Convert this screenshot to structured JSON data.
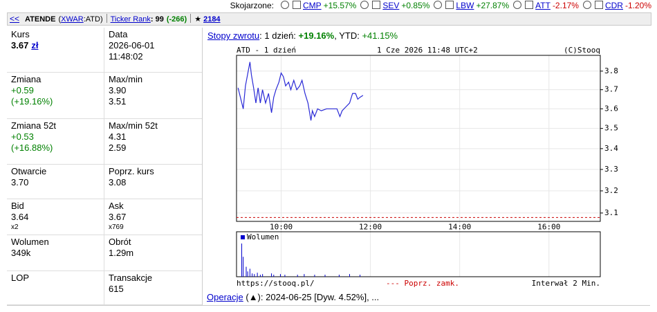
{
  "compare_bar": {
    "label": "Skojarzone:",
    "items": [
      {
        "ticker": "CMP",
        "change": "+15.57%",
        "color": "#008000"
      },
      {
        "ticker": "SEV",
        "change": "+0.85%",
        "color": "#008000"
      },
      {
        "ticker": "LBW",
        "change": "+27.87%",
        "color": "#008000"
      },
      {
        "ticker": "ATT",
        "change": "-2.17%",
        "color": "#cc0000"
      },
      {
        "ticker": "CDR",
        "change": "-1.20%",
        "color": "#cc0000"
      }
    ]
  },
  "header": {
    "back": "<<",
    "name": "ATENDE",
    "market_open": "(",
    "market": "XWAR",
    "market_close": ":ATD)",
    "rank_link": "Ticker Rank",
    "rank": ": 99",
    "rank_change": "(-266)",
    "star": "★",
    "star_count": "2184"
  },
  "quote_table": {
    "rows": [
      [
        {
          "label": "Kurs",
          "lines": [
            "3.67"
          ],
          "unit": "zł",
          "bold": true
        },
        {
          "label": "Data",
          "lines": [
            "2026-06-01",
            "11:48:02"
          ]
        }
      ],
      [
        {
          "label": "Zmiana",
          "lines": [
            "+0.59",
            "(+19.16%)"
          ],
          "color": "#008000"
        },
        {
          "label": "Max/min",
          "lines": [
            "3.90",
            "3.51"
          ]
        }
      ],
      [
        {
          "label": "Zmiana 52t",
          "lines": [
            "+0.53",
            "(+16.88%)"
          ],
          "color": "#008000"
        },
        {
          "label": "Max/min 52t",
          "lines": [
            "4.31",
            "2.59"
          ]
        }
      ],
      [
        {
          "label": "Otwarcie",
          "lines": [
            "3.70"
          ]
        },
        {
          "label": "Poprz. kurs",
          "lines": [
            "3.08"
          ]
        }
      ],
      [
        {
          "label": "Bid",
          "lines": [
            "3.64"
          ],
          "sub": "x2"
        },
        {
          "label": "Ask",
          "lines": [
            "3.67"
          ],
          "sub": "x769"
        }
      ],
      [
        {
          "label": "Wolumen",
          "lines": [
            "349k"
          ]
        },
        {
          "label": "Obrót",
          "lines": [
            "1.29m"
          ]
        }
      ],
      [
        {
          "label": "LOP",
          "lines": []
        },
        {
          "label": "Transakcje",
          "lines": [
            "615"
          ]
        }
      ]
    ]
  },
  "returns": {
    "link": "Stopy zwrotu",
    "day_label": ": 1 dzień: ",
    "day": "+19.16%",
    "ytd_label": ", YTD: ",
    "ytd": "+41.15%"
  },
  "chart_data": [
    {
      "type": "line",
      "title": "ATD - 1 dzień",
      "subtitle": "1 Cze 2026 11:48 UTC+2",
      "credit": "(C)Stooq",
      "log_scale": true,
      "grid": true,
      "color": "#2929d6",
      "x": [
        542,
        549,
        552,
        558,
        560,
        563,
        566,
        569,
        572,
        575,
        579,
        583,
        587,
        590,
        593,
        597,
        600,
        603,
        606,
        610,
        613,
        617,
        621,
        625,
        628,
        632,
        636,
        640,
        642,
        645,
        649,
        654,
        661,
        668,
        675,
        679,
        682,
        687,
        692,
        696,
        700,
        703,
        706,
        710
      ],
      "values": [
        3.71,
        3.6,
        3.72,
        3.85,
        3.78,
        3.71,
        3.63,
        3.71,
        3.63,
        3.7,
        3.63,
        3.68,
        3.58,
        3.66,
        3.7,
        3.74,
        3.79,
        3.77,
        3.72,
        3.74,
        3.7,
        3.75,
        3.7,
        3.72,
        3.75,
        3.68,
        3.63,
        3.54,
        3.59,
        3.56,
        3.6,
        3.59,
        3.6,
        3.6,
        3.6,
        3.56,
        3.59,
        3.61,
        3.63,
        3.68,
        3.68,
        3.65,
        3.66,
        3.67
      ],
      "xlim": [
        540,
        1029
      ],
      "xticks": [
        {
          "value": 600,
          "label": "10:00"
        },
        {
          "value": 720,
          "label": "12:00"
        },
        {
          "value": 840,
          "label": "14:00"
        },
        {
          "value": 960,
          "label": "16:00"
        }
      ],
      "ylim": [
        3.063,
        3.887
      ],
      "yticks": [
        3.1,
        3.2,
        3.3,
        3.4,
        3.5,
        3.6,
        3.7,
        3.8
      ],
      "reference_value": 3.08,
      "reference_label": "--- Poprz. zamk.",
      "reference_color": "#cc0000",
      "source": "https://stooq.pl/",
      "interval": "Interwał 2 Min."
    },
    {
      "type": "bar",
      "legend": "Wolumen",
      "color": "#0000cc",
      "xlim": [
        540,
        1029
      ],
      "x": [
        547,
        549,
        553,
        555,
        558,
        561,
        564,
        568,
        572,
        575,
        587,
        590,
        599,
        605,
        622,
        631,
        645,
        659,
        678,
        692,
        706
      ],
      "values": [
        100000,
        60000,
        30000,
        16000,
        24000,
        10000,
        8000,
        12000,
        6000,
        8000,
        10000,
        6000,
        8000,
        6000,
        6000,
        8000,
        6000,
        6000,
        6000,
        8000,
        6000
      ]
    }
  ],
  "operations": {
    "link": "Operacje",
    "text": " (▲): 2024-06-25 [Dyw. 4.52%], ..."
  }
}
